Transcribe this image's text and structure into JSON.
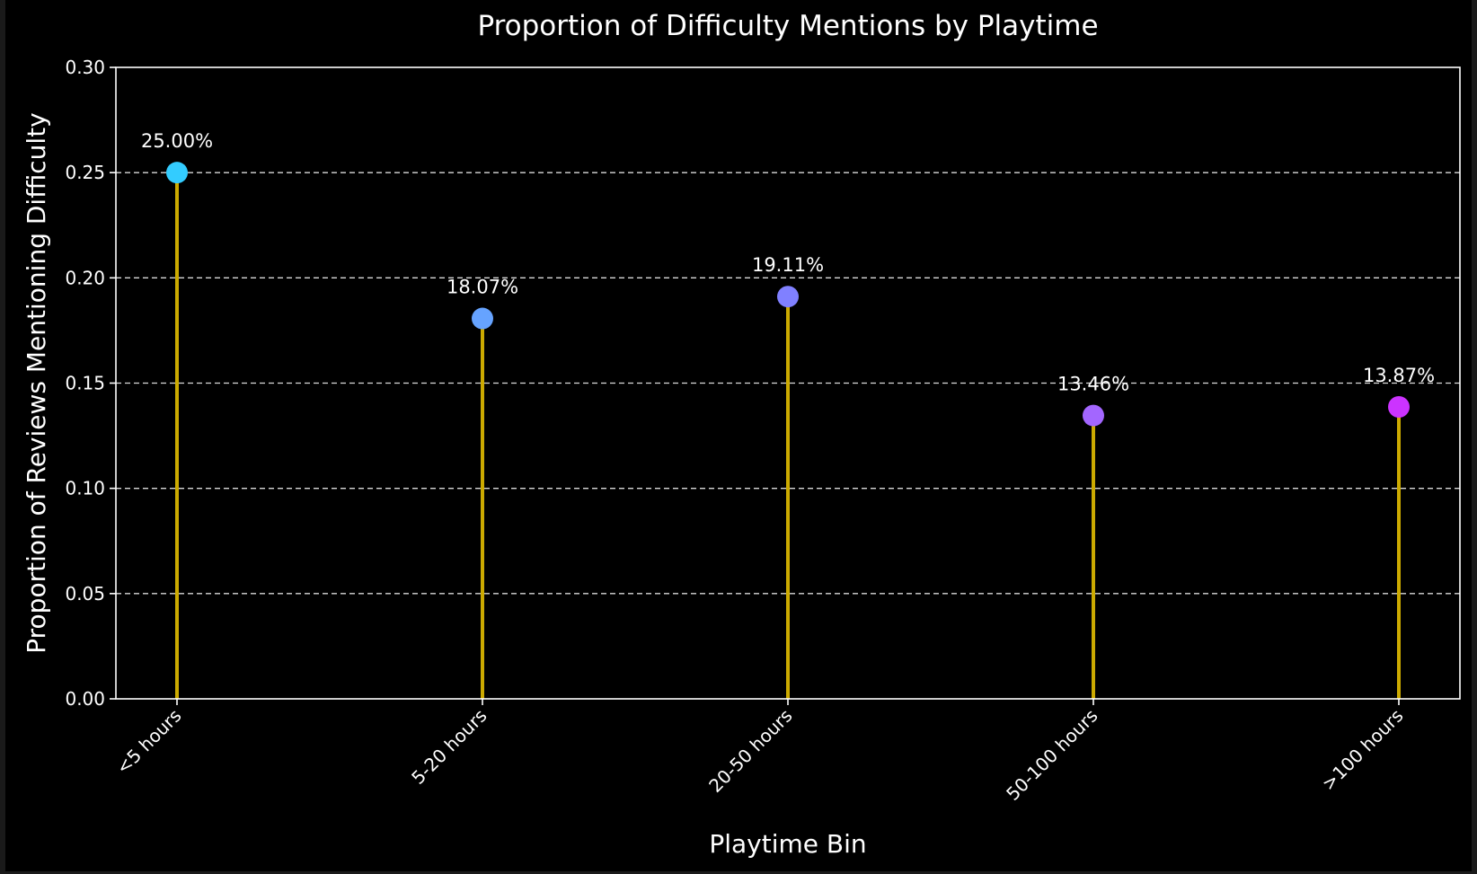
{
  "chart_data": {
    "type": "lollipop",
    "title": "Proportion of Difficulty Mentions by Playtime",
    "xlabel": "Playtime Bin",
    "ylabel": "Proportion of Reviews Mentioning Difficulty",
    "categories": [
      "<5 hours",
      "5-20 hours",
      "20-50 hours",
      "50-100 hours",
      ">100 hours"
    ],
    "values": [
      0.25,
      0.1807,
      0.1911,
      0.1346,
      0.1387
    ],
    "data_labels": [
      "25.00%",
      "18.07%",
      "19.11%",
      "13.46%",
      "13.87%"
    ],
    "marker_colors": [
      "#33ccff",
      "#66a3ff",
      "#8080ff",
      "#a366ff",
      "#cc33ff"
    ],
    "stem_color": "#ccaa00",
    "ylim": [
      0,
      0.3
    ],
    "yticks": [
      0.0,
      0.05,
      0.1,
      0.15,
      0.2,
      0.25,
      0.3
    ],
    "ytick_labels": [
      "0.00",
      "0.05",
      "0.10",
      "0.15",
      "0.20",
      "0.25",
      "0.30"
    ],
    "grid": "horizontal dashed",
    "background": "#000000",
    "text_color": "#ffffff"
  }
}
